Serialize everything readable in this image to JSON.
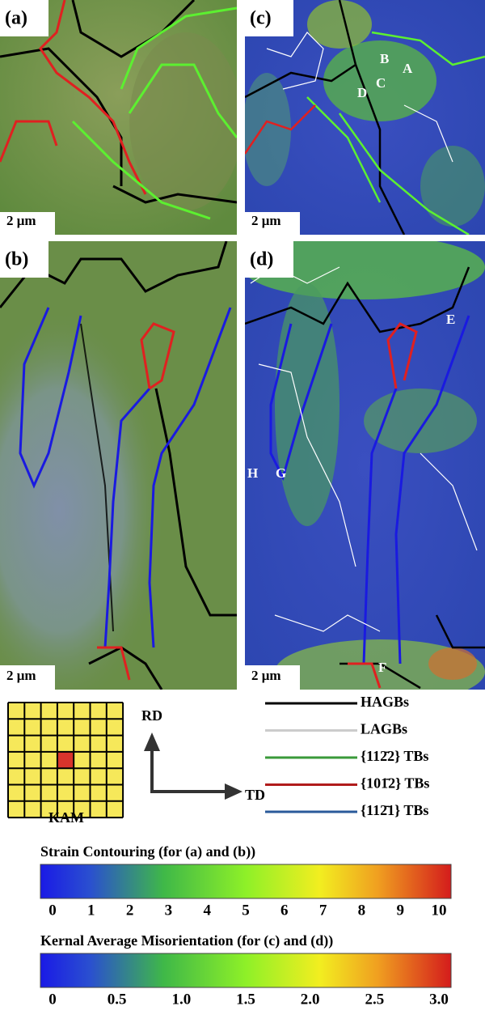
{
  "panels": [
    {
      "label": "(a)",
      "scale": "2 μm"
    },
    {
      "label": "(b)",
      "scale": "2 μm"
    },
    {
      "label": "(c)",
      "scale": "2 μm",
      "points": [
        "A",
        "B",
        "C",
        "D"
      ]
    },
    {
      "label": "(d)",
      "scale": "2 μm",
      "points": [
        "E",
        "F",
        "G",
        "H"
      ]
    }
  ],
  "legend": {
    "kam": "KAM",
    "axes": {
      "rd": "RD",
      "td": "TD"
    },
    "boundaries": [
      "HAGBs",
      "LAGBs",
      "{112̄2} TBs",
      "{101̄2} TBs",
      "{112̄1} TBs"
    ]
  },
  "colorbars": [
    {
      "title": "Strain Contouring (for (a) and (b))",
      "ticks": [
        "0",
        "1",
        "2",
        "3",
        "4",
        "5",
        "6",
        "7",
        "8",
        "9",
        "10"
      ]
    },
    {
      "title": "Kernal Average Misorientation (for (c) and (d))",
      "ticks": [
        "0",
        "0.5",
        "1.0",
        "1.5",
        "2.0",
        "2.5",
        "3.0"
      ]
    }
  ]
}
